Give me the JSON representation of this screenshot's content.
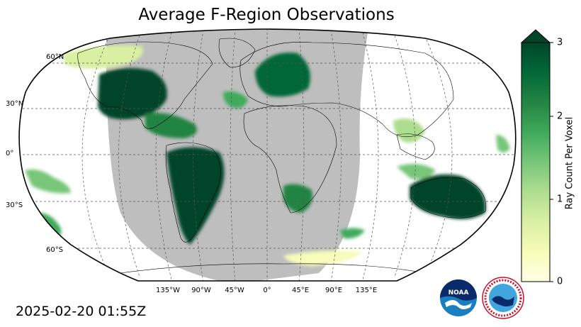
{
  "title": "Average F-Region Observations",
  "timestamp": "2025-02-20 01:55Z",
  "map": {
    "projection": "Robinson-like global",
    "night_shading_color": "#bebebe",
    "lat_labels": [
      "60°N",
      "30°N",
      "0°",
      "30°S",
      "60°S"
    ],
    "lon_labels": [
      "135°W",
      "90°W",
      "45°W",
      "0°",
      "45°E",
      "90°E",
      "135°E"
    ]
  },
  "colorbar": {
    "label": "Ray Count Per Voxel",
    "ticks": [
      "0",
      "1",
      "2",
      "3"
    ],
    "min": 0,
    "max": 3,
    "extend": "max",
    "colormap": "YlGn",
    "colors": [
      "#ffffe5",
      "#f7fcb9",
      "#d9f0a3",
      "#addd8e",
      "#78c679",
      "#41ab5d",
      "#238443",
      "#006837",
      "#004529"
    ]
  },
  "logos": [
    "noaa-logo",
    "national-weather-service-logo"
  ]
}
